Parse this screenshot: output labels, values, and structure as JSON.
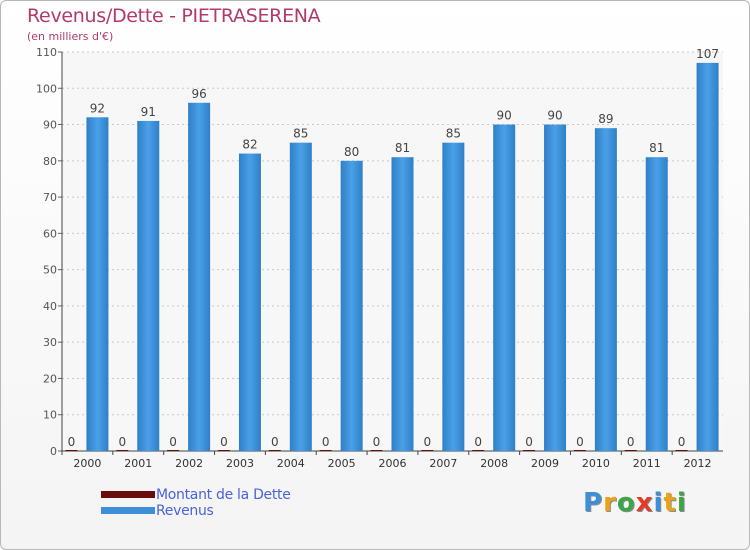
{
  "chart_data": {
    "type": "bar",
    "title": "Revenus/Dette - PIETRASERENA",
    "subtitle": "(en milliers d'€)",
    "categories": [
      "2000",
      "2001",
      "2002",
      "2003",
      "2004",
      "2005",
      "2006",
      "2007",
      "2008",
      "2009",
      "2010",
      "2011",
      "2012"
    ],
    "series": [
      {
        "name": "Montant de la Dette",
        "color": "#6b0d0d",
        "values": [
          0,
          0,
          0,
          0,
          0,
          0,
          0,
          0,
          0,
          0,
          0,
          0,
          0
        ]
      },
      {
        "name": "Revenus",
        "color": "#3d8fd8",
        "values": [
          92,
          91,
          96,
          82,
          85,
          80,
          81,
          85,
          90,
          90,
          89,
          81,
          107
        ]
      }
    ],
    "ylim": [
      0,
      110
    ],
    "yticks": [
      0,
      10,
      20,
      30,
      40,
      50,
      60,
      70,
      80,
      90,
      100,
      110
    ],
    "grid": true,
    "legend_position": "bottom-left"
  },
  "logo": {
    "letters": [
      "P",
      "r",
      "o",
      "x",
      "i",
      "t",
      "i"
    ],
    "colors": [
      "#3d8fd8",
      "#e9a21c",
      "#3ca646",
      "#e53a2a",
      "#3d8fd8",
      "#e9a21c",
      "#3ca646"
    ]
  }
}
